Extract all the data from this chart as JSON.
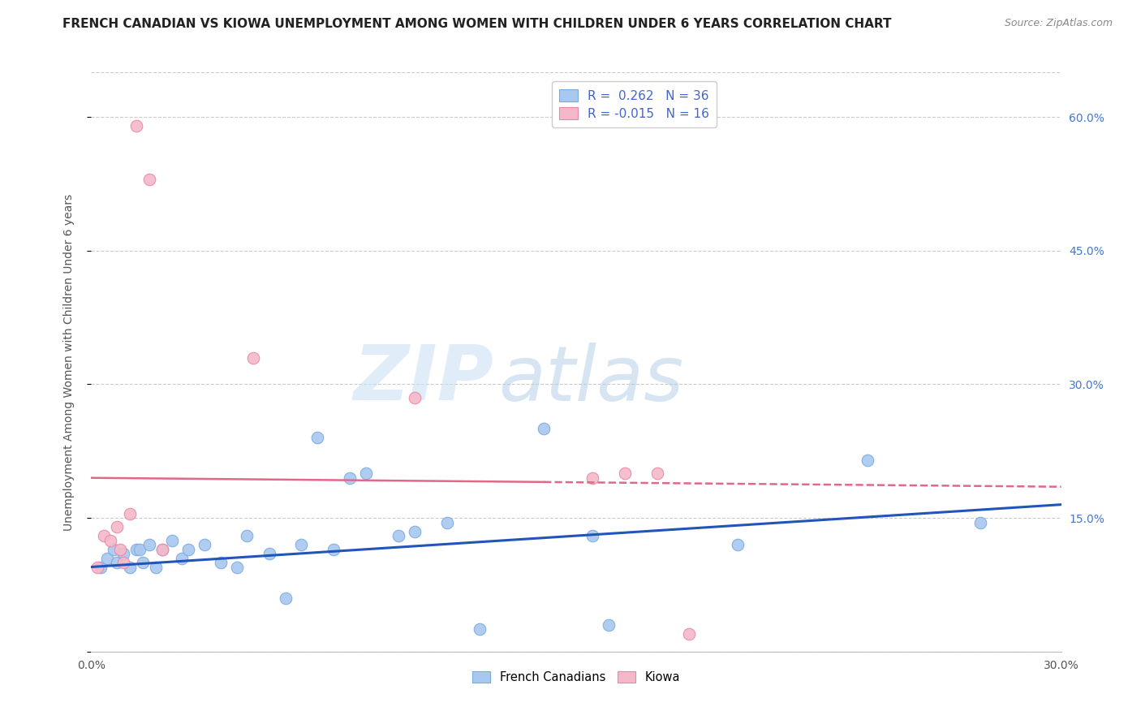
{
  "title": "FRENCH CANADIAN VS KIOWA UNEMPLOYMENT AMONG WOMEN WITH CHILDREN UNDER 6 YEARS CORRELATION CHART",
  "source": "Source: ZipAtlas.com",
  "ylabel": "Unemployment Among Women with Children Under 6 years",
  "xlim": [
    0.0,
    0.3
  ],
  "ylim": [
    0.0,
    0.65
  ],
  "xticks": [
    0.0,
    0.05,
    0.1,
    0.15,
    0.2,
    0.25,
    0.3
  ],
  "yticks_right": [
    0.0,
    0.15,
    0.3,
    0.45,
    0.6
  ],
  "ytick_right_labels": [
    "",
    "15.0%",
    "30.0%",
    "45.0%",
    "60.0%"
  ],
  "watermark_zip": "ZIP",
  "watermark_atlas": "atlas",
  "french_canadian_color": "#a8c8f0",
  "french_canadian_edge": "#7aabdc",
  "kiowa_color": "#f5b8c8",
  "kiowa_edge": "#e888a8",
  "blue_line_color": "#2255bb",
  "pink_line_color": "#e06888",
  "legend_label1": "French Canadians",
  "legend_label2": "Kiowa",
  "french_canadian_x": [
    0.003,
    0.005,
    0.007,
    0.008,
    0.01,
    0.012,
    0.014,
    0.015,
    0.016,
    0.018,
    0.02,
    0.022,
    0.025,
    0.028,
    0.03,
    0.035,
    0.04,
    0.045,
    0.048,
    0.055,
    0.06,
    0.065,
    0.07,
    0.075,
    0.08,
    0.085,
    0.095,
    0.1,
    0.11,
    0.12,
    0.14,
    0.155,
    0.16,
    0.2,
    0.24,
    0.275
  ],
  "french_canadian_y": [
    0.095,
    0.105,
    0.115,
    0.1,
    0.11,
    0.095,
    0.115,
    0.115,
    0.1,
    0.12,
    0.095,
    0.115,
    0.125,
    0.105,
    0.115,
    0.12,
    0.1,
    0.095,
    0.13,
    0.11,
    0.06,
    0.12,
    0.24,
    0.115,
    0.195,
    0.2,
    0.13,
    0.135,
    0.145,
    0.025,
    0.25,
    0.13,
    0.03,
    0.12,
    0.215,
    0.145
  ],
  "kiowa_x": [
    0.002,
    0.004,
    0.006,
    0.008,
    0.009,
    0.01,
    0.012,
    0.014,
    0.018,
    0.022,
    0.05,
    0.1,
    0.155,
    0.165,
    0.175,
    0.185
  ],
  "kiowa_y": [
    0.095,
    0.13,
    0.125,
    0.14,
    0.115,
    0.1,
    0.155,
    0.59,
    0.53,
    0.115,
    0.33,
    0.285,
    0.195,
    0.2,
    0.2,
    0.02
  ],
  "blue_trend_x": [
    0.0,
    0.3
  ],
  "blue_trend_y": [
    0.095,
    0.165
  ],
  "pink_trend_x": [
    0.0,
    0.3
  ],
  "pink_trend_y": [
    0.195,
    0.185
  ],
  "background_color": "#ffffff",
  "grid_color": "#cccccc",
  "title_fontsize": 11,
  "axis_label_fontsize": 10,
  "tick_fontsize": 10,
  "marker_size": 110
}
